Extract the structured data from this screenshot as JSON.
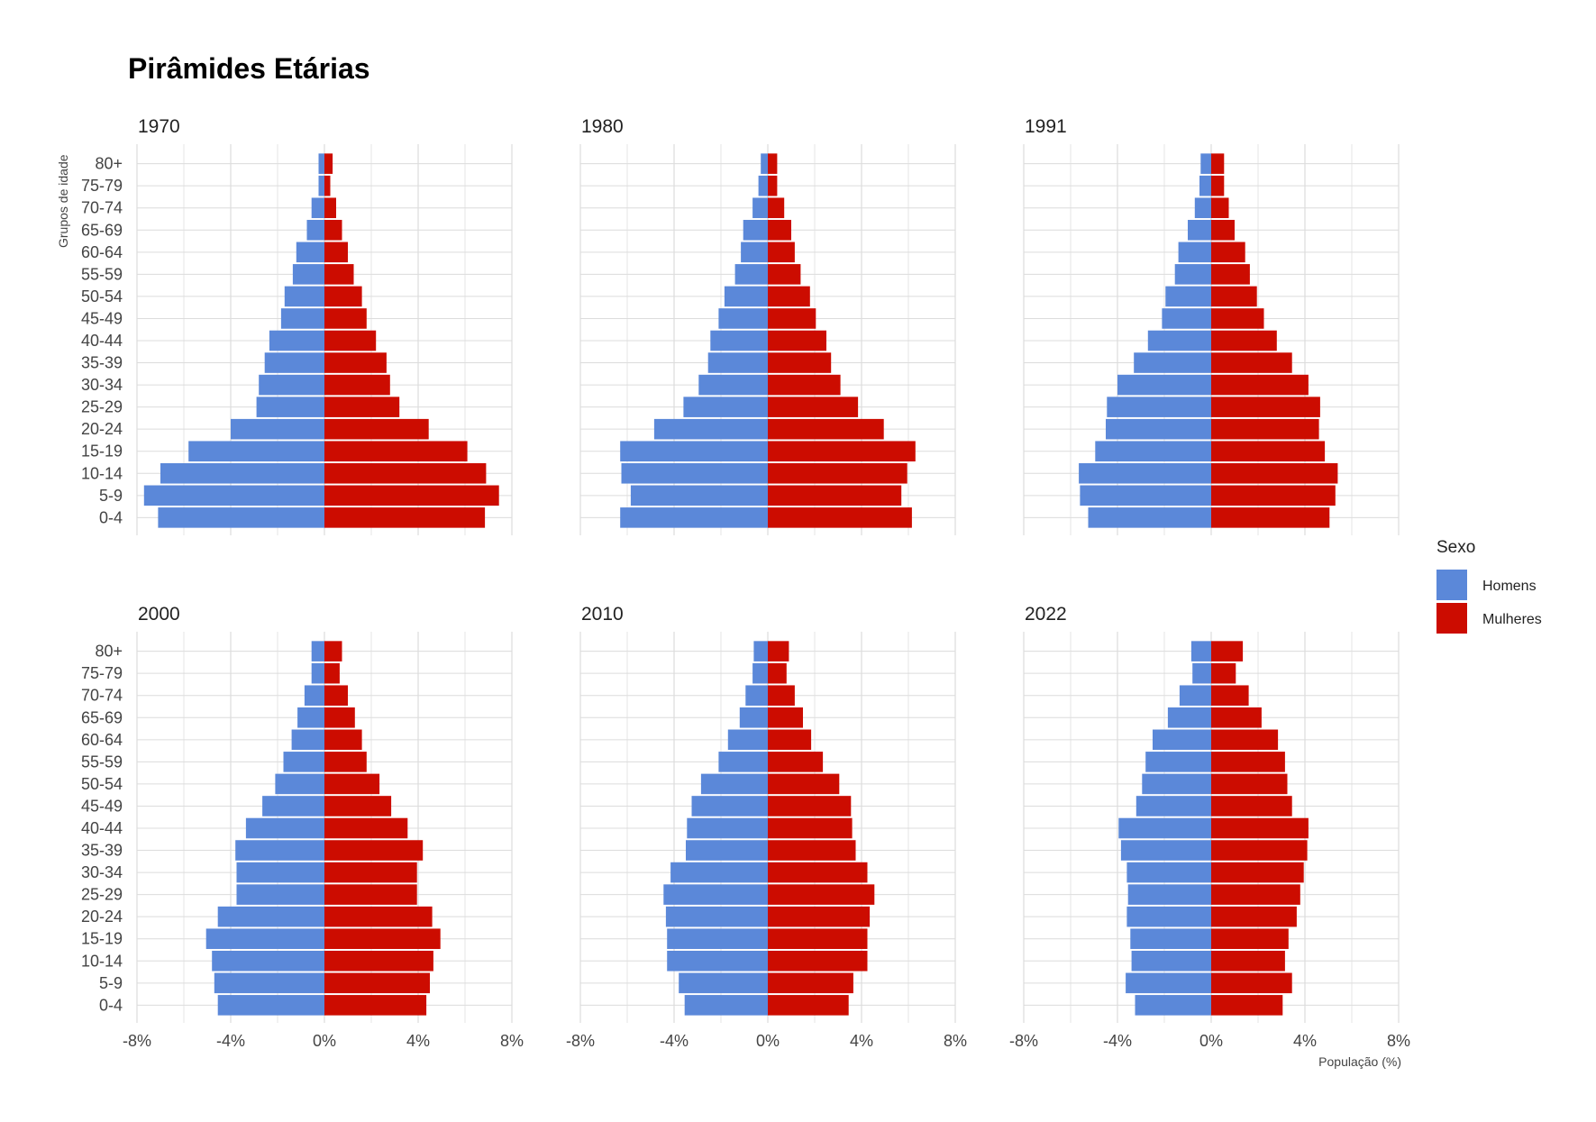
{
  "colors": {
    "Homens": "#5b88d9",
    "Mulheres": "#cc0c00",
    "grid": "#dcdcdc"
  },
  "legend": {
    "title": "Sexo",
    "items": [
      "Homens",
      "Mulheres"
    ],
    "position": "right"
  },
  "chart_data": {
    "type": "bar",
    "orientation": "horizontal",
    "title": "Pirâmides Etárias",
    "xlabel": "População (%)",
    "ylabel": "Grupos de idade",
    "xlim": [
      -8,
      8
    ],
    "x_ticks": [
      "-8%",
      "-4%",
      "0%",
      "4%",
      "8%"
    ],
    "x_tick_values": [
      -8,
      -4,
      0,
      4,
      8
    ],
    "grid": true,
    "age_groups": [
      "0-4",
      "5-9",
      "10-14",
      "15-19",
      "20-24",
      "25-29",
      "30-34",
      "35-39",
      "40-44",
      "45-49",
      "50-54",
      "55-59",
      "60-64",
      "65-69",
      "70-74",
      "75-79",
      "80+"
    ],
    "panels": [
      {
        "year": "1970",
        "Homens": [
          -7.1,
          -7.7,
          -7.0,
          -5.8,
          -4.0,
          -2.9,
          -2.8,
          -2.55,
          -2.35,
          -1.85,
          -1.7,
          -1.35,
          -1.2,
          -0.75,
          -0.55,
          -0.25,
          -0.25
        ],
        "Mulheres": [
          6.85,
          7.45,
          6.9,
          6.1,
          4.45,
          3.2,
          2.8,
          2.65,
          2.2,
          1.8,
          1.6,
          1.25,
          1.0,
          0.75,
          0.5,
          0.25,
          0.35
        ]
      },
      {
        "year": "1980",
        "Homens": [
          -6.3,
          -5.85,
          -6.25,
          -6.3,
          -4.85,
          -3.6,
          -2.95,
          -2.55,
          -2.45,
          -2.1,
          -1.85,
          -1.4,
          -1.15,
          -1.05,
          -0.65,
          -0.4,
          -0.3
        ],
        "Mulheres": [
          6.15,
          5.7,
          5.95,
          6.3,
          4.95,
          3.85,
          3.1,
          2.7,
          2.5,
          2.05,
          1.8,
          1.4,
          1.15,
          1.0,
          0.7,
          0.4,
          0.4
        ]
      },
      {
        "year": "1991",
        "Homens": [
          -5.25,
          -5.6,
          -5.65,
          -4.95,
          -4.5,
          -4.45,
          -4.0,
          -3.3,
          -2.7,
          -2.1,
          -1.95,
          -1.55,
          -1.4,
          -1.0,
          -0.7,
          -0.5,
          -0.45
        ],
        "Mulheres": [
          5.05,
          5.3,
          5.4,
          4.85,
          4.6,
          4.65,
          4.15,
          3.45,
          2.8,
          2.25,
          1.95,
          1.65,
          1.45,
          1.0,
          0.75,
          0.55,
          0.55
        ]
      },
      {
        "year": "2000",
        "Homens": [
          -4.55,
          -4.7,
          -4.8,
          -5.05,
          -4.55,
          -3.75,
          -3.75,
          -3.8,
          -3.35,
          -2.65,
          -2.1,
          -1.75,
          -1.4,
          -1.15,
          -0.85,
          -0.55,
          -0.55
        ],
        "Mulheres": [
          4.35,
          4.5,
          4.65,
          4.95,
          4.6,
          3.95,
          3.95,
          4.2,
          3.55,
          2.85,
          2.35,
          1.8,
          1.6,
          1.3,
          1.0,
          0.65,
          0.75
        ]
      },
      {
        "year": "2010",
        "Homens": [
          -3.55,
          -3.8,
          -4.3,
          -4.3,
          -4.35,
          -4.45,
          -4.15,
          -3.5,
          -3.45,
          -3.25,
          -2.85,
          -2.1,
          -1.7,
          -1.2,
          -0.95,
          -0.65,
          -0.6
        ],
        "Mulheres": [
          3.45,
          3.65,
          4.25,
          4.25,
          4.35,
          4.55,
          4.25,
          3.75,
          3.6,
          3.55,
          3.05,
          2.35,
          1.85,
          1.5,
          1.15,
          0.8,
          0.9
        ]
      },
      {
        "year": "2022",
        "Homens": [
          -3.25,
          -3.65,
          -3.4,
          -3.45,
          -3.6,
          -3.55,
          -3.6,
          -3.85,
          -3.95,
          -3.2,
          -2.95,
          -2.8,
          -2.5,
          -1.85,
          -1.35,
          -0.8,
          -0.85
        ],
        "Mulheres": [
          3.05,
          3.45,
          3.15,
          3.3,
          3.65,
          3.8,
          3.95,
          4.1,
          4.15,
          3.45,
          3.25,
          3.15,
          2.85,
          2.15,
          1.6,
          1.05,
          1.35
        ]
      }
    ]
  }
}
